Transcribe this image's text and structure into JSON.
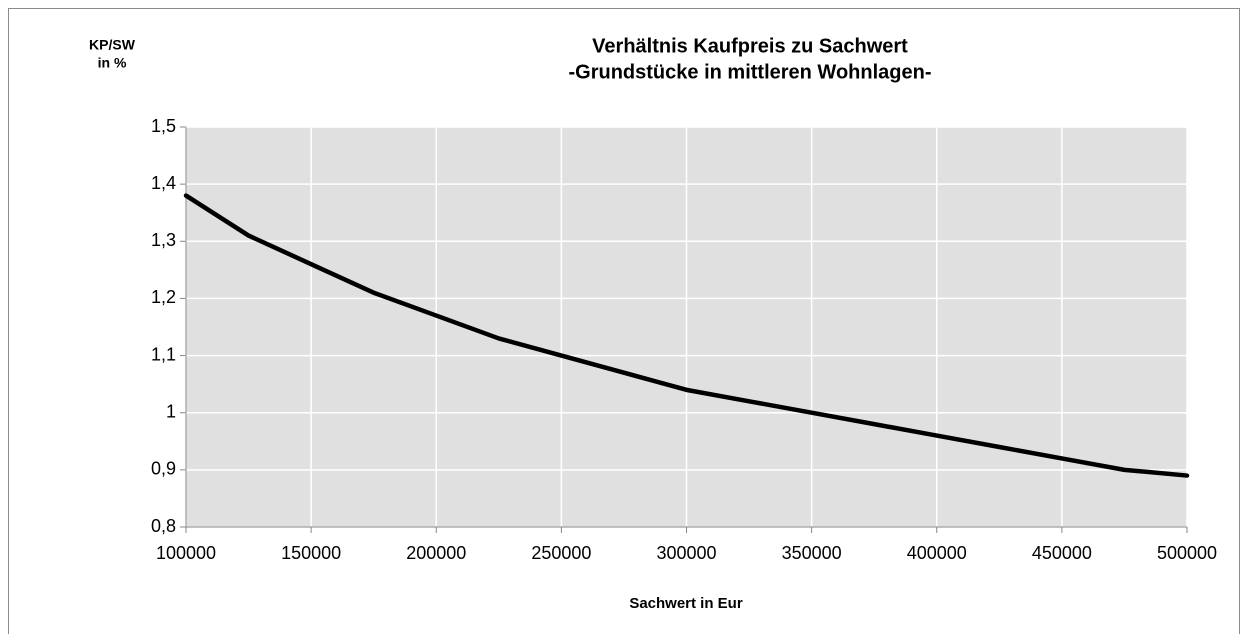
{
  "chart_data": {
    "type": "line",
    "title": [
      "Verhältnis Kaufpreis zu Sachwert",
      "-Grundstücke in mittleren Wohnlagen-"
    ],
    "y_label": [
      "KP/SW",
      "in %"
    ],
    "x_label": "Sachwert in Eur",
    "x": [
      100000,
      125000,
      150000,
      175000,
      200000,
      225000,
      250000,
      275000,
      300000,
      325000,
      350000,
      375000,
      400000,
      425000,
      450000,
      475000,
      500000
    ],
    "series": [
      {
        "color": "#000000",
        "values": [
          1.38,
          1.31,
          1.26,
          1.21,
          1.17,
          1.13,
          1.1,
          1.07,
          1.04,
          1.02,
          1.0,
          0.98,
          0.96,
          0.94,
          0.92,
          0.9,
          0.89
        ]
      }
    ],
    "xlim": [
      100000,
      500000
    ],
    "xticks": [
      100000,
      150000,
      200000,
      250000,
      300000,
      350000,
      400000,
      450000,
      500000
    ],
    "ylim": [
      0.8,
      1.5
    ],
    "yticks": [
      {
        "value": 0.8,
        "label": "0,8"
      },
      {
        "value": 0.9,
        "label": "0,9"
      },
      1,
      {
        "value": 1.1,
        "label": "1,1"
      },
      {
        "value": 1.2,
        "label": "1,2"
      },
      {
        "value": 1.3,
        "label": "1,3"
      },
      {
        "value": 1.4,
        "label": "1,4"
      },
      {
        "value": 1.5,
        "label": "1,5"
      }
    ],
    "grid": true
  }
}
